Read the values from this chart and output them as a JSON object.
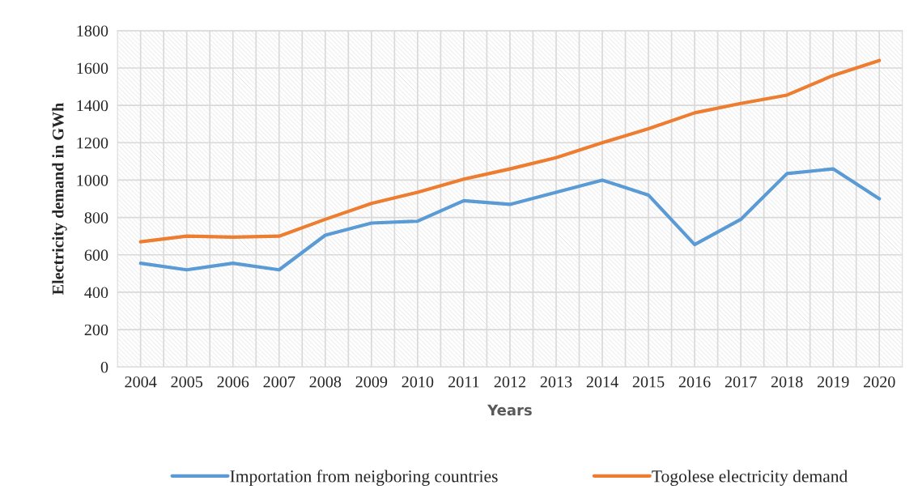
{
  "chart_data": {
    "type": "line",
    "xlabel": "Years",
    "ylabel": "Electricity demand in GWh",
    "categories": [
      "2004",
      "2005",
      "2006",
      "2007",
      "2008",
      "2009",
      "2010",
      "2011",
      "2012",
      "2013",
      "2014",
      "2015",
      "2016",
      "2017",
      "2018",
      "2019",
      "2020"
    ],
    "series": [
      {
        "name": "Importation from neigboring countries",
        "color": "#5b9bd5",
        "values": [
          555,
          520,
          555,
          520,
          705,
          770,
          780,
          890,
          870,
          935,
          1000,
          920,
          655,
          790,
          1035,
          1060,
          900
        ]
      },
      {
        "name": "Togolese electricity demand",
        "color": "#ed7d31",
        "values": [
          670,
          700,
          695,
          700,
          790,
          875,
          935,
          1005,
          1060,
          1120,
          1200,
          1275,
          1360,
          1410,
          1455,
          1560,
          1640
        ]
      }
    ],
    "ylim": [
      0,
      1800
    ],
    "yticks": [
      0,
      200,
      400,
      600,
      800,
      1000,
      1200,
      1400,
      1600,
      1800
    ],
    "grid": true,
    "legend": "bottom",
    "marker": "none",
    "line_style": "solid"
  }
}
